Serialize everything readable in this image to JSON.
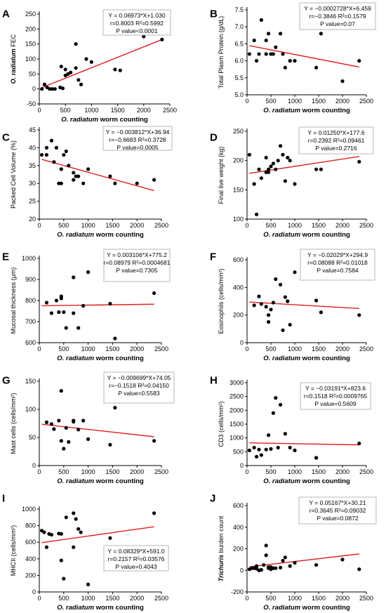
{
  "chart_data": [
    {
      "panel": "A",
      "type": "scatter",
      "xlabel": "O. radiatum worm counting",
      "ylabel_italic": "O. radiatum",
      "ylabel": "FEC",
      "xticks": [
        "0",
        "500",
        "1000",
        "1500",
        "2000",
        "2500"
      ],
      "yticks": [
        "-50",
        "0",
        "50",
        "100",
        "150",
        "200",
        "250"
      ],
      "xlim": [
        0,
        2500
      ],
      "ylim": [
        -50,
        250
      ],
      "stats": [
        "Y = 0.06973*X+1.030",
        "r=0.8003  R²=0.5992",
        "P value<0.0001"
      ],
      "fit": {
        "slope": 0.06973,
        "intercept": 1.03
      },
      "x": [
        50,
        100,
        150,
        200,
        250,
        300,
        400,
        420,
        450,
        500,
        500,
        550,
        600,
        700,
        700,
        750,
        800,
        900,
        1000,
        1450,
        1550,
        2000,
        2350
      ],
      "y": [
        0,
        15,
        5,
        0,
        0,
        0,
        5,
        75,
        2,
        65,
        45,
        50,
        55,
        150,
        70,
        30,
        15,
        100,
        90,
        65,
        62,
        175,
        165
      ]
    },
    {
      "panel": "B",
      "type": "scatter",
      "xlabel": "O. radiatum worm counting",
      "ylabel": "Total Plasm Protein (g/dL)",
      "xticks": [
        "0",
        "500",
        "1000",
        "1500",
        "2000",
        "2500"
      ],
      "yticks": [
        "5.0",
        "5.5",
        "6.0",
        "6.5",
        "7.0",
        "7.5"
      ],
      "xlim": [
        0,
        2500
      ],
      "ylim": [
        5.0,
        7.5
      ],
      "stats": [
        "Y = −0.0002728*X+6.459",
        "r=−0.3846  R²=0.1579",
        "P value=0.07"
      ],
      "fit": {
        "slope": -0.0002728,
        "intercept": 6.459
      },
      "x": [
        50,
        150,
        200,
        250,
        300,
        400,
        400,
        450,
        500,
        550,
        600,
        700,
        750,
        800,
        900,
        1000,
        1450,
        1550,
        2000,
        2350
      ],
      "y": [
        6.2,
        6.6,
        6.0,
        6.2,
        7.2,
        6.6,
        6.2,
        6.8,
        6.2,
        6.2,
        6.4,
        6.8,
        6.2,
        5.8,
        6.0,
        6.0,
        5.8,
        6.8,
        5.4,
        6.0
      ]
    },
    {
      "panel": "C",
      "type": "scatter",
      "xlabel": "O. radiatum worm counting",
      "ylabel": "Packed Cell Volume (%)",
      "xticks": [
        "0",
        "500",
        "1000",
        "1500",
        "2000",
        "2500"
      ],
      "yticks": [
        "20",
        "25",
        "30",
        "35",
        "40",
        "45"
      ],
      "xlim": [
        0,
        2500
      ],
      "ylim": [
        20,
        45
      ],
      "stats": [
        "Y = −0.003812*X+36.94",
        "r=−0.6683  R²=0.3728",
        "P value=0.0005"
      ],
      "fit": {
        "slope": -0.003812,
        "intercept": 36.94
      },
      "x": [
        50,
        150,
        150,
        250,
        300,
        350,
        400,
        450,
        450,
        500,
        550,
        600,
        700,
        700,
        750,
        800,
        900,
        1000,
        1450,
        1550,
        2000,
        2350
      ],
      "y": [
        38,
        40,
        38,
        42,
        36,
        40,
        30,
        34,
        30,
        38,
        39,
        35,
        33,
        31,
        32,
        32,
        30,
        34,
        32,
        30,
        30,
        31
      ]
    },
    {
      "panel": "D",
      "type": "scatter",
      "xlabel": "O. radiatum worm counting",
      "ylabel": "Final live weight (kg)",
      "xticks": [
        "0",
        "500",
        "1000",
        "1500",
        "2000",
        "2500"
      ],
      "yticks": [
        "100",
        "150",
        "200",
        "250"
      ],
      "xlim": [
        0,
        2500
      ],
      "ylim": [
        100,
        250
      ],
      "stats": [
        "Y = 0.01250*X+177.6",
        "r=0.2392  R²=0.09461",
        "P value=0.2716"
      ],
      "fit": {
        "slope": 0.0125,
        "intercept": 177.6
      },
      "x": [
        50,
        150,
        200,
        250,
        300,
        400,
        400,
        450,
        450,
        500,
        550,
        600,
        650,
        700,
        750,
        800,
        850,
        900,
        1000,
        1450,
        1550,
        1950,
        2350
      ],
      "y": [
        210,
        160,
        108,
        185,
        170,
        205,
        180,
        185,
        180,
        190,
        195,
        185,
        200,
        225,
        210,
        165,
        205,
        200,
        160,
        185,
        185,
        225,
        198
      ]
    },
    {
      "panel": "E",
      "type": "scatter",
      "xlabel": "O. radiatum worm counting",
      "ylabel": "Mucosal thickness (μm)",
      "xticks": [
        "0",
        "500",
        "1000",
        "1500",
        "2000",
        "2500"
      ],
      "yticks": [
        "600",
        "700",
        "800",
        "900",
        "1000"
      ],
      "xlim": [
        0,
        2500
      ],
      "ylim": [
        600,
        1000
      ],
      "stats": [
        "Y = 0.003106*X+775.2",
        "r=0.08979  R²=0.0004681",
        "P value=0.7305"
      ],
      "fit": {
        "slope": 0.003106,
        "intercept": 775.2
      },
      "x": [
        150,
        250,
        350,
        400,
        450,
        450,
        500,
        550,
        700,
        700,
        800,
        900,
        1000,
        1450,
        1550,
        2350
      ],
      "y": [
        790,
        740,
        800,
        745,
        810,
        820,
        745,
        670,
        910,
        740,
        670,
        775,
        935,
        785,
        620,
        835
      ]
    },
    {
      "panel": "F",
      "type": "scatter",
      "xlabel": "O. radiatum worm counting",
      "ylabel": "Eosinophils (cells/mm²)",
      "xticks": [
        "0",
        "500",
        "1000",
        "1500",
        "2000",
        "2500"
      ],
      "yticks": [
        "0",
        "200",
        "400",
        "600"
      ],
      "xlim": [
        0,
        2500
      ],
      "ylim": [
        0,
        600
      ],
      "stats": [
        "Y = −0.02029*X+294.9",
        "r=0.08088  R²=0.01018",
        "P value=0.7584"
      ],
      "fit": {
        "slope": -0.02029,
        "intercept": 294.9
      },
      "x": [
        150,
        250,
        300,
        400,
        450,
        450,
        500,
        550,
        600,
        700,
        750,
        800,
        850,
        900,
        1000,
        1450,
        1550,
        2350
      ],
      "y": [
        270,
        335,
        280,
        260,
        200,
        150,
        240,
        290,
        460,
        420,
        90,
        330,
        300,
        130,
        510,
        305,
        220,
        200
      ]
    },
    {
      "panel": "G",
      "type": "scatter",
      "xlabel": "O. radiatum worm counting",
      "ylabel": "Mast cells (cells/mm²)",
      "xticks": [
        "0",
        "500",
        "1000",
        "1500",
        "2000",
        "2500"
      ],
      "yticks": [
        "0",
        "50",
        "100",
        "150"
      ],
      "xlim": [
        0,
        2500
      ],
      "ylim": [
        0,
        150
      ],
      "stats": [
        "Y = −0.009699*X+74.05",
        "r=−0.1518  R²=0.04150",
        "P value=0.5583"
      ],
      "fit": {
        "slope": -0.009699,
        "intercept": 74.05
      },
      "x": [
        150,
        250,
        300,
        400,
        450,
        450,
        500,
        550,
        600,
        700,
        700,
        800,
        900,
        1000,
        1450,
        1550,
        2350
      ],
      "y": [
        77,
        74,
        65,
        80,
        133,
        44,
        30,
        67,
        42,
        78,
        80,
        64,
        80,
        47,
        37,
        103,
        44
      ]
    },
    {
      "panel": "H",
      "type": "scatter",
      "xlabel": "O. radiatum worm counting",
      "ylabel": "CD3 (cells/mm²)",
      "xticks": [
        "0",
        "500",
        "1000",
        "1500",
        "2000",
        "2500"
      ],
      "yticks": [
        "0",
        "500",
        "1000",
        "1500",
        "2000",
        "2500",
        "3000"
      ],
      "xlim": [
        0,
        2500
      ],
      "ylim": [
        0,
        3000
      ],
      "stats": [
        "Y = −0.03191*X+823.6",
        "r=0.1518  R²=0.0009765",
        "P value=0.5609"
      ],
      "fit": {
        "slope": -0.03191,
        "intercept": 823.6
      },
      "x": [
        50,
        150,
        200,
        250,
        300,
        400,
        450,
        500,
        550,
        600,
        650,
        700,
        800,
        900,
        1000,
        1450,
        2350
      ],
      "y": [
        550,
        650,
        320,
        580,
        380,
        580,
        1100,
        600,
        1900,
        2450,
        650,
        2200,
        1150,
        650,
        550,
        280,
        800
      ]
    },
    {
      "panel": "I",
      "type": "scatter",
      "xlabel": "O. radiatum worm counting",
      "ylabel": "MHCII (cells/mm²)",
      "xticks": [
        "0",
        "500",
        "1000",
        "1500",
        "2000",
        "2500"
      ],
      "yticks": [
        "0",
        "200",
        "400",
        "600",
        "800",
        "1000"
      ],
      "xlim": [
        0,
        2500
      ],
      "ylim": [
        0,
        1000
      ],
      "stats": [
        "Y = 0.08329*X+591.0",
        "r=0.2157  R²=0.03576",
        "P value=0.4043"
      ],
      "fit": {
        "slope": 0.08329,
        "intercept": 591.0
      },
      "x": [
        50,
        100,
        150,
        200,
        250,
        400,
        450,
        450,
        500,
        550,
        700,
        700,
        750,
        800,
        850,
        1000,
        1450,
        2350
      ],
      "y": [
        740,
        720,
        540,
        700,
        690,
        705,
        380,
        700,
        160,
        900,
        950,
        540,
        880,
        760,
        720,
        90,
        650,
        950
      ]
    },
    {
      "panel": "J",
      "type": "scatter",
      "xlabel": "O. radiatum worm counting",
      "ylabel_italic": "Trichuris",
      "ylabel": "burden count",
      "xticks": [
        "0",
        "500",
        "1000",
        "1500",
        "2000",
        "2500"
      ],
      "yticks": [
        "-200",
        "0",
        "200",
        "400",
        "600"
      ],
      "xlim": [
        0,
        2500
      ],
      "ylim": [
        -200,
        600
      ],
      "stats": [
        "Y = 0.05167*X+30.21",
        "r=0.3645  R²=0.09032",
        "P value=0.0872"
      ],
      "fit": {
        "slope": 0.05167,
        "intercept": 30.21
      },
      "x": [
        50,
        100,
        150,
        200,
        200,
        250,
        300,
        350,
        400,
        400,
        450,
        450,
        500,
        500,
        550,
        600,
        700,
        750,
        800,
        900,
        1000,
        1450,
        1600,
        2000,
        2350
      ],
      "y": [
        10,
        20,
        20,
        40,
        15,
        0,
        5,
        50,
        230,
        140,
        30,
        20,
        10,
        30,
        20,
        20,
        25,
        90,
        120,
        40,
        70,
        50,
        470,
        100,
        10
      ]
    }
  ]
}
